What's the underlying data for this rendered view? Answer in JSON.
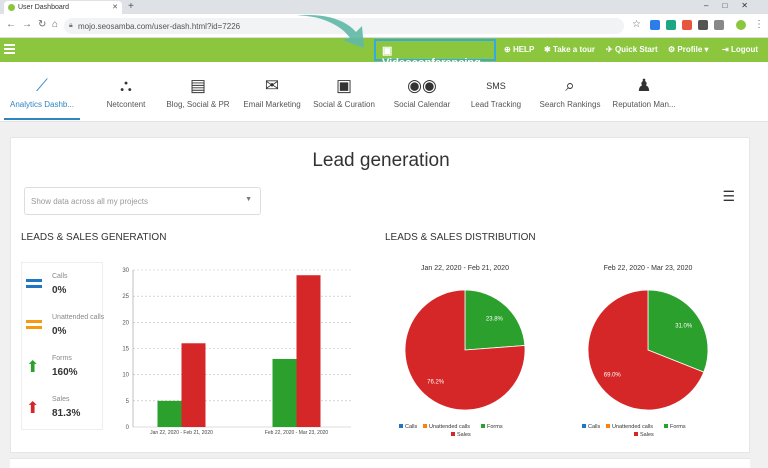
{
  "browser": {
    "tab_title": "User Dashboard",
    "url": "mojo.seosamba.com/user-dash.html?id=7226"
  },
  "topbar": {
    "videoconferencing": "Videoconferencing",
    "help": "HELP",
    "tour": "Take a tour",
    "quickstart": "Quick Start",
    "profile": "Profile",
    "logout": "Logout"
  },
  "nav": [
    {
      "label": "Analytics Dashb...",
      "icon": "analytics-icon",
      "glyph": "⟋"
    },
    {
      "label": "Netcontent",
      "icon": "network-icon",
      "glyph": "⛬"
    },
    {
      "label": "Blog, Social & PR",
      "icon": "pr-document-icon",
      "glyph": "▤"
    },
    {
      "label": "Email Marketing",
      "icon": "envelope-icon",
      "glyph": "✉"
    },
    {
      "label": "Social & Curation",
      "icon": "curation-icon",
      "glyph": "▣"
    },
    {
      "label": "Social Calendar",
      "icon": "social-calendar-icon",
      "glyph": "◉◉"
    },
    {
      "label": "Lead Tracking",
      "icon": "sms-icon",
      "glyph": "SMS"
    },
    {
      "label": "Search Rankings",
      "icon": "search-rankings-icon",
      "glyph": "⌕"
    },
    {
      "label": "Reputation Man...",
      "icon": "reputation-icon",
      "glyph": "♟"
    }
  ],
  "page": {
    "title": "Lead generation",
    "select_placeholder": "Show data across all my projects",
    "section_left": "LEADS & SALES GENERATION",
    "section_right": "LEADS & SALES DISTRIBUTION"
  },
  "kpis": [
    {
      "label": "Calls",
      "value": "0%",
      "color": "#1f77c4",
      "kind": "dash"
    },
    {
      "label": "Unattended calls",
      "value": "0%",
      "color": "#f39c12",
      "kind": "dash"
    },
    {
      "label": "Forms",
      "value": "160%",
      "color": "#2ca02c",
      "kind": "up"
    },
    {
      "label": "Sales",
      "value": "81.3%",
      "color": "#d62728",
      "kind": "up"
    }
  ],
  "chart_data": [
    {
      "type": "bar",
      "categories": [
        "Jan 22, 2020 - Feb 21, 2020",
        "Feb 22, 2020 - Mar 23, 2020"
      ],
      "series": [
        {
          "name": "Forms",
          "values": [
            5,
            13
          ],
          "color": "#2ca02c"
        },
        {
          "name": "Sales",
          "values": [
            16,
            29
          ],
          "color": "#d62728"
        }
      ],
      "yticks": [
        0,
        5,
        10,
        15,
        20,
        25,
        30
      ],
      "ylim": [
        0,
        30
      ],
      "grid": true
    },
    {
      "type": "pie",
      "title": "Jan 22, 2020 - Feb 21, 2020",
      "slices": [
        {
          "name": "Forms",
          "value": 23.8,
          "label": "23.8%",
          "color": "#2ca02c"
        },
        {
          "name": "Sales",
          "value": 76.2,
          "label": "76.2%",
          "color": "#d62728"
        }
      ],
      "legend": [
        "Calls",
        "Unattended calls",
        "Forms",
        "Sales"
      ]
    },
    {
      "type": "pie",
      "title": "Feb 22, 2020 - Mar 23, 2020",
      "slices": [
        {
          "name": "Forms",
          "value": 31.0,
          "label": "31.0%",
          "color": "#2ca02c"
        },
        {
          "name": "Sales",
          "value": 69.0,
          "label": "69.0%",
          "color": "#d62728"
        }
      ],
      "legend": [
        "Calls",
        "Unattended calls",
        "Forms",
        "Sales"
      ]
    }
  ],
  "legend_colors": {
    "Calls": "#1f77c4",
    "Unattended calls": "#ff7f0e",
    "Forms": "#2ca02c",
    "Sales": "#d62728"
  }
}
